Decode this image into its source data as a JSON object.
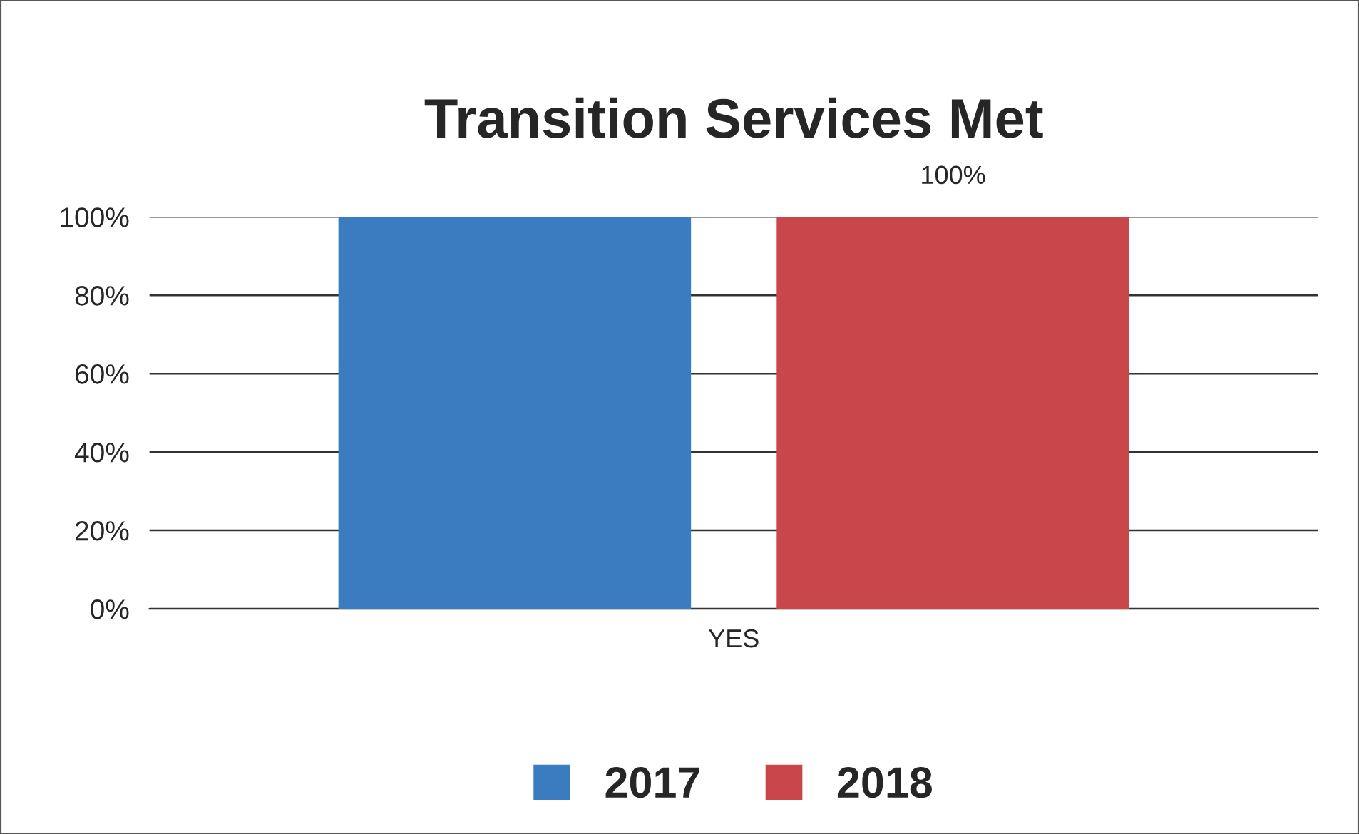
{
  "chart_data": {
    "type": "bar",
    "title": "Transition Services Met",
    "categories": [
      "YES"
    ],
    "series": [
      {
        "name": "2017",
        "color": "#3b7cc0",
        "values": [
          100
        ]
      },
      {
        "name": "2018",
        "color": "#c9474b",
        "values": [
          100
        ],
        "value_labels": [
          "100%"
        ]
      }
    ],
    "ylim": [
      0,
      100
    ],
    "yticks": [
      {
        "value": 0,
        "label": "0%"
      },
      {
        "value": 20,
        "label": "20%"
      },
      {
        "value": 40,
        "label": "40%"
      },
      {
        "value": 60,
        "label": "60%"
      },
      {
        "value": 80,
        "label": "80%"
      },
      {
        "value": 100,
        "label": "100%"
      }
    ],
    "grid": "y",
    "legend": "bottom"
  }
}
